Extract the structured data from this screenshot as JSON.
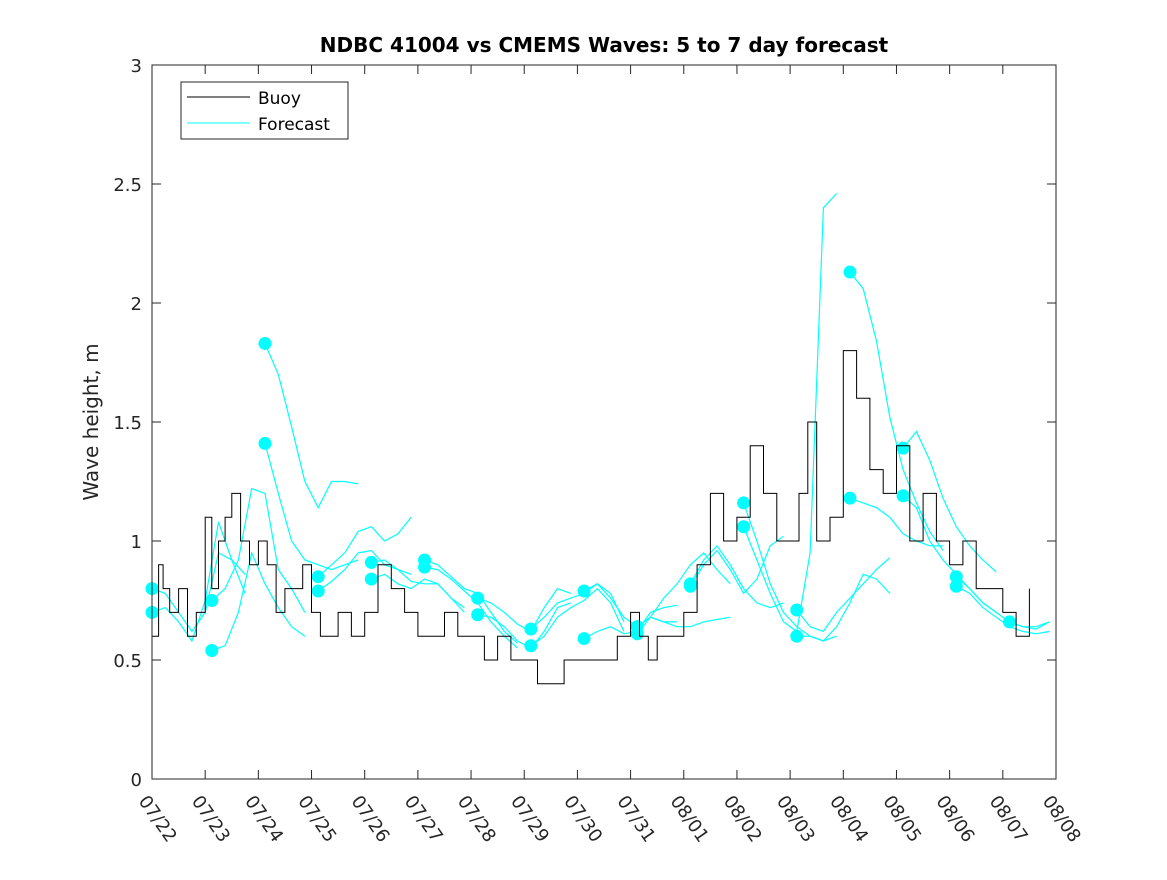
{
  "chart_data": {
    "type": "line",
    "title": "NDBC 41004 vs CMEMS Waves: 5 to 7 day forecast",
    "xlabel": "",
    "ylabel": "Wave height, m",
    "ylim": [
      0,
      3
    ],
    "xlim": [
      "07/22",
      "08/08"
    ],
    "x_ticks": [
      "07/22",
      "07/23",
      "07/24",
      "07/25",
      "07/26",
      "07/27",
      "07/28",
      "07/29",
      "07/30",
      "07/31",
      "08/01",
      "08/02",
      "08/03",
      "08/04",
      "08/05",
      "08/06",
      "08/07",
      "08/08"
    ],
    "y_ticks": [
      "0",
      "0.5",
      "1",
      "1.5",
      "2",
      "2.5",
      "3"
    ],
    "grid": false,
    "legend_position": "top-left",
    "colors": {
      "buoy": "#000000",
      "forecast": "#00ffff"
    },
    "legend": [
      {
        "label": "Buoy",
        "color": "#000000"
      },
      {
        "label": "Forecast",
        "color": "#00ffff"
      }
    ],
    "buoy": {
      "name": "Buoy",
      "x": [
        "07/22 00:00",
        "07/22 03:00",
        "07/22 05:00",
        "07/22 08:00",
        "07/22 12:00",
        "07/22 16:00",
        "07/22 20:00",
        "07/23 00:00",
        "07/23 03:00",
        "07/23 06:00",
        "07/23 09:00",
        "07/23 12:00",
        "07/23 16:00",
        "07/23 20:00",
        "07/24 00:00",
        "07/24 04:00",
        "07/24 08:00",
        "07/24 12:00",
        "07/24 16:00",
        "07/24 20:00",
        "07/25 00:00",
        "07/25 04:00",
        "07/25 08:00",
        "07/25 12:00",
        "07/25 18:00",
        "07/26 00:00",
        "07/26 06:00",
        "07/26 12:00",
        "07/26 18:00",
        "07/27 00:00",
        "07/27 06:00",
        "07/27 12:00",
        "07/27 18:00",
        "07/28 00:00",
        "07/28 06:00",
        "07/28 12:00",
        "07/28 18:00",
        "07/29 00:00",
        "07/29 06:00",
        "07/29 12:00",
        "07/29 18:00",
        "07/30 00:00",
        "07/30 06:00",
        "07/30 12:00",
        "07/30 18:00",
        "07/31 00:00",
        "07/31 04:00",
        "07/31 08:00",
        "07/31 12:00",
        "07/31 18:00",
        "08/01 00:00",
        "08/01 06:00",
        "08/01 12:00",
        "08/01 18:00",
        "08/02 00:00",
        "08/02 06:00",
        "08/02 12:00",
        "08/02 18:00",
        "08/03 00:00",
        "08/03 04:00",
        "08/03 08:00",
        "08/03 12:00",
        "08/03 18:00",
        "08/04 00:00",
        "08/04 06:00",
        "08/04 12:00",
        "08/04 18:00",
        "08/05 00:00",
        "08/05 06:00",
        "08/05 12:00",
        "08/05 18:00",
        "08/06 00:00",
        "08/06 06:00",
        "08/06 12:00",
        "08/06 18:00",
        "08/07 00:00",
        "08/07 06:00",
        "08/07 12:00"
      ],
      "y": [
        0.6,
        0.9,
        0.8,
        0.7,
        0.8,
        0.6,
        0.7,
        1.1,
        0.8,
        1.0,
        1.1,
        1.2,
        1.0,
        0.9,
        1.0,
        0.9,
        0.7,
        0.8,
        0.8,
        0.9,
        0.7,
        0.6,
        0.6,
        0.7,
        0.6,
        0.7,
        0.9,
        0.8,
        0.7,
        0.6,
        0.6,
        0.7,
        0.6,
        0.6,
        0.5,
        0.6,
        0.5,
        0.5,
        0.4,
        0.4,
        0.5,
        0.5,
        0.5,
        0.5,
        0.6,
        0.7,
        0.6,
        0.5,
        0.6,
        0.6,
        0.7,
        0.9,
        1.2,
        1.0,
        1.1,
        1.4,
        1.2,
        1.0,
        1.0,
        1.2,
        1.5,
        1.0,
        1.1,
        1.8,
        1.6,
        1.3,
        1.2,
        1.4,
        1.0,
        1.2,
        1.0,
        0.9,
        1.0,
        0.8,
        0.8,
        0.7,
        0.6,
        0.8
      ]
    },
    "series": [
      {
        "x": [
          "07/22 00:00",
          "07/22 06:00",
          "07/22 12:00",
          "07/22 18:00",
          "07/23 00:00",
          "07/23 06:00",
          "07/23 12:00",
          "07/23 18:00"
        ],
        "y": [
          0.8,
          0.78,
          0.7,
          0.62,
          0.7,
          0.95,
          0.92,
          0.86
        ]
      },
      {
        "x": [
          "07/22 00:00",
          "07/22 06:00",
          "07/22 12:00",
          "07/22 18:00",
          "07/23 00:00",
          "07/23 06:00",
          "07/23 12:00",
          "07/23 18:00"
        ],
        "y": [
          0.7,
          0.72,
          0.66,
          0.58,
          0.75,
          1.08,
          0.92,
          0.78
        ]
      },
      {
        "x": [
          "07/23 03:00",
          "07/23 09:00",
          "07/23 15:00",
          "07/23 21:00",
          "07/24 03:00",
          "07/24 09:00",
          "07/24 15:00",
          "07/24 21:00"
        ],
        "y": [
          0.75,
          0.8,
          0.92,
          1.22,
          1.2,
          0.88,
          0.8,
          0.7
        ]
      },
      {
        "x": [
          "07/23 03:00",
          "07/23 09:00",
          "07/23 15:00",
          "07/23 21:00",
          "07/24 03:00",
          "07/24 09:00",
          "07/24 15:00",
          "07/24 21:00"
        ],
        "y": [
          0.54,
          0.56,
          0.7,
          0.95,
          0.82,
          0.72,
          0.64,
          0.6
        ]
      },
      {
        "x": [
          "07/24 03:00",
          "07/24 09:00",
          "07/24 15:00",
          "07/24 21:00",
          "07/25 03:00",
          "07/25 09:00",
          "07/25 15:00",
          "07/25 21:00"
        ],
        "y": [
          1.83,
          1.7,
          1.48,
          1.25,
          1.14,
          1.25,
          1.25,
          1.24
        ]
      },
      {
        "x": [
          "07/24 03:00",
          "07/24 09:00",
          "07/24 15:00",
          "07/24 21:00",
          "07/25 03:00",
          "07/25 09:00",
          "07/25 15:00",
          "07/25 21:00"
        ],
        "y": [
          1.41,
          1.2,
          1.0,
          0.92,
          0.9,
          0.88,
          0.9,
          0.92
        ]
      },
      {
        "x": [
          "07/25 03:00",
          "07/25 09:00",
          "07/25 15:00",
          "07/25 21:00",
          "07/26 03:00",
          "07/26 09:00",
          "07/26 15:00",
          "07/26 21:00"
        ],
        "y": [
          0.85,
          0.9,
          0.95,
          1.04,
          1.06,
          1.0,
          1.03,
          1.1
        ]
      },
      {
        "x": [
          "07/25 03:00",
          "07/25 09:00",
          "07/25 15:00",
          "07/25 21:00",
          "07/26 03:00",
          "07/26 09:00",
          "07/26 15:00",
          "07/26 21:00"
        ],
        "y": [
          0.79,
          0.83,
          0.88,
          0.95,
          0.96,
          0.9,
          0.88,
          0.86
        ]
      },
      {
        "x": [
          "07/26 03:00",
          "07/26 09:00",
          "07/26 15:00",
          "07/26 21:00",
          "07/27 03:00",
          "07/27 09:00",
          "07/27 15:00",
          "07/27 21:00"
        ],
        "y": [
          0.91,
          0.92,
          0.88,
          0.83,
          0.82,
          0.82,
          0.76,
          0.7
        ]
      },
      {
        "x": [
          "07/26 03:00",
          "07/26 09:00",
          "07/26 15:00",
          "07/26 21:00",
          "07/27 03:00",
          "07/27 09:00",
          "07/27 15:00",
          "07/27 21:00"
        ],
        "y": [
          0.84,
          0.86,
          0.82,
          0.8,
          0.84,
          0.82,
          0.76,
          0.72
        ]
      },
      {
        "x": [
          "07/27 03:00",
          "07/27 09:00",
          "07/27 15:00",
          "07/27 21:00",
          "07/28 03:00",
          "07/28 09:00",
          "07/28 15:00",
          "07/28 21:00"
        ],
        "y": [
          0.92,
          0.9,
          0.85,
          0.8,
          0.78,
          0.7,
          0.62,
          0.57
        ]
      },
      {
        "x": [
          "07/27 03:00",
          "07/27 09:00",
          "07/27 15:00",
          "07/27 21:00",
          "07/28 03:00",
          "07/28 09:00",
          "07/28 15:00",
          "07/28 21:00"
        ],
        "y": [
          0.89,
          0.88,
          0.84,
          0.79,
          0.74,
          0.66,
          0.6,
          0.55
        ]
      },
      {
        "x": [
          "07/28 03:00",
          "07/28 09:00",
          "07/28 15:00",
          "07/28 21:00",
          "07/29 03:00",
          "07/29 09:00",
          "07/29 15:00",
          "07/29 21:00"
        ],
        "y": [
          0.76,
          0.74,
          0.7,
          0.65,
          0.62,
          0.72,
          0.8,
          0.78
        ]
      },
      {
        "x": [
          "07/28 03:00",
          "07/28 09:00",
          "07/28 15:00",
          "07/28 21:00",
          "07/29 03:00",
          "07/29 09:00",
          "07/29 15:00",
          "07/29 21:00"
        ],
        "y": [
          0.69,
          0.68,
          0.64,
          0.58,
          0.55,
          0.62,
          0.72,
          0.74
        ]
      },
      {
        "x": [
          "07/29 03:00",
          "07/29 09:00",
          "07/29 15:00",
          "07/29 21:00",
          "07/30 03:00",
          "07/30 09:00",
          "07/30 15:00",
          "07/30 21:00"
        ],
        "y": [
          0.63,
          0.68,
          0.74,
          0.76,
          0.78,
          0.82,
          0.78,
          0.66
        ]
      },
      {
        "x": [
          "07/29 03:00",
          "07/29 09:00",
          "07/29 15:00",
          "07/29 21:00",
          "07/30 03:00",
          "07/30 09:00",
          "07/30 15:00",
          "07/30 21:00"
        ],
        "y": [
          0.56,
          0.6,
          0.68,
          0.72,
          0.75,
          0.8,
          0.74,
          0.62
        ]
      },
      {
        "x": [
          "07/30 03:00",
          "07/30 09:00",
          "07/30 15:00",
          "07/30 21:00",
          "07/31 03:00",
          "07/31 09:00",
          "07/31 15:00",
          "07/31 21:00"
        ],
        "y": [
          0.79,
          0.82,
          0.76,
          0.68,
          0.64,
          0.68,
          0.66,
          0.66
        ]
      },
      {
        "x": [
          "07/30 03:00",
          "07/30 09:00",
          "07/30 15:00",
          "07/30 21:00",
          "07/31 03:00",
          "07/31 09:00",
          "07/31 15:00",
          "07/31 21:00"
        ],
        "y": [
          0.59,
          0.62,
          0.64,
          0.61,
          0.62,
          0.7,
          0.72,
          0.73
        ]
      },
      {
        "x": [
          "07/31 03:00",
          "07/31 09:00",
          "07/31 15:00",
          "07/31 21:00",
          "08/01 03:00",
          "08/01 09:00",
          "08/01 15:00",
          "08/01 21:00"
        ],
        "y": [
          0.64,
          0.68,
          0.66,
          0.64,
          0.64,
          0.66,
          0.67,
          0.68
        ]
      },
      {
        "x": [
          "07/31 03:00",
          "07/31 09:00",
          "07/31 15:00",
          "07/31 21:00",
          "08/01 03:00",
          "08/01 09:00",
          "08/01 15:00",
          "08/01 21:00"
        ],
        "y": [
          0.61,
          0.68,
          0.76,
          0.82,
          0.9,
          0.95,
          0.88,
          0.82
        ]
      },
      {
        "x": [
          "08/01 03:00",
          "08/01 09:00",
          "08/01 15:00",
          "08/01 21:00",
          "08/02 03:00",
          "08/02 09:00",
          "08/02 15:00",
          "08/02 21:00"
        ],
        "y": [
          0.82,
          0.92,
          0.98,
          0.9,
          0.8,
          0.74,
          0.72,
          0.74
        ]
      },
      {
        "x": [
          "08/01 03:00",
          "08/01 09:00",
          "08/01 15:00",
          "08/01 21:00",
          "08/02 03:00",
          "08/02 09:00",
          "08/02 15:00",
          "08/02 21:00"
        ],
        "y": [
          0.81,
          0.9,
          0.96,
          0.88,
          0.78,
          0.84,
          0.98,
          1.02
        ]
      },
      {
        "x": [
          "08/02 03:00",
          "08/02 09:00",
          "08/02 15:00",
          "08/02 21:00",
          "08/03 03:00",
          "08/03 09:00",
          "08/03 15:00",
          "08/03 21:00"
        ],
        "y": [
          1.16,
          1.0,
          0.82,
          0.7,
          0.64,
          0.6,
          0.58,
          0.6
        ]
      },
      {
        "x": [
          "08/02 03:00",
          "08/02 09:00",
          "08/02 15:00",
          "08/02 21:00",
          "08/03 03:00",
          "08/03 09:00",
          "08/03 15:00",
          "08/03 21:00"
        ],
        "y": [
          1.06,
          0.92,
          0.78,
          0.66,
          0.62,
          0.95,
          2.4,
          2.46
        ]
      },
      {
        "x": [
          "08/03 03:00",
          "08/03 09:00",
          "08/03 15:00",
          "08/03 21:00",
          "08/04 03:00",
          "08/04 09:00",
          "08/04 15:00",
          "08/04 21:00"
        ],
        "y": [
          0.71,
          0.64,
          0.62,
          0.7,
          0.76,
          0.82,
          0.88,
          0.93
        ]
      },
      {
        "x": [
          "08/03 03:00",
          "08/03 09:00",
          "08/03 15:00",
          "08/03 21:00",
          "08/04 03:00",
          "08/04 09:00",
          "08/04 15:00",
          "08/04 21:00"
        ],
        "y": [
          0.6,
          0.6,
          0.58,
          0.64,
          0.74,
          0.86,
          0.84,
          0.78
        ]
      },
      {
        "x": [
          "08/04 03:00",
          "08/04 09:00",
          "08/04 15:00",
          "08/04 21:00",
          "08/05 03:00",
          "08/05 09:00",
          "08/05 15:00",
          "08/05 21:00"
        ],
        "y": [
          2.13,
          2.06,
          1.84,
          1.52,
          1.3,
          1.16,
          1.04,
          0.96
        ]
      },
      {
        "x": [
          "08/04 03:00",
          "08/04 09:00",
          "08/04 15:00",
          "08/04 21:00",
          "08/05 03:00",
          "08/05 09:00",
          "08/05 15:00",
          "08/05 21:00"
        ],
        "y": [
          1.18,
          1.16,
          1.14,
          1.1,
          1.03,
          1.0,
          0.98,
          0.98
        ]
      },
      {
        "x": [
          "08/05 03:00",
          "08/05 09:00",
          "08/05 15:00",
          "08/05 21:00",
          "08/06 03:00",
          "08/06 09:00",
          "08/06 15:00",
          "08/06 21:00"
        ],
        "y": [
          1.39,
          1.46,
          1.34,
          1.18,
          1.06,
          0.98,
          0.92,
          0.87
        ]
      },
      {
        "x": [
          "08/05 03:00",
          "08/05 09:00",
          "08/05 15:00",
          "08/05 21:00",
          "08/06 03:00",
          "08/06 09:00",
          "08/06 15:00",
          "08/06 21:00"
        ],
        "y": [
          1.19,
          1.14,
          1.0,
          0.92,
          0.86,
          0.8,
          0.74,
          0.7
        ]
      },
      {
        "x": [
          "08/06 03:00",
          "08/06 09:00",
          "08/06 15:00",
          "08/06 21:00",
          "08/07 03:00",
          "08/07 09:00",
          "08/07 15:00",
          "08/07 21:00"
        ],
        "y": [
          0.85,
          0.8,
          0.74,
          0.7,
          0.66,
          0.64,
          0.63,
          0.66
        ]
      },
      {
        "x": [
          "08/06 03:00",
          "08/06 09:00",
          "08/06 15:00",
          "08/06 21:00",
          "08/07 03:00",
          "08/07 09:00",
          "08/07 15:00",
          "08/07 21:00"
        ],
        "y": [
          0.81,
          0.78,
          0.72,
          0.68,
          0.64,
          0.62,
          0.61,
          0.62
        ]
      },
      {
        "x": [
          "08/07 03:00",
          "08/07 09:00",
          "08/07 15:00",
          "08/07 21:00"
        ],
        "y": [
          0.66,
          0.64,
          0.64,
          0.66
        ]
      }
    ]
  }
}
